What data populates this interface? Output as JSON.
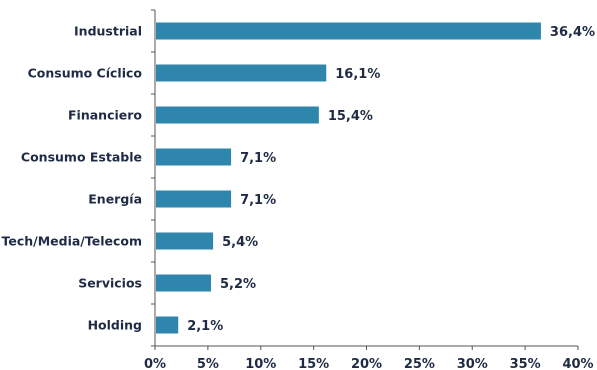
{
  "chart_data": {
    "type": "bar",
    "orientation": "horizontal",
    "categories": [
      "Industrial",
      "Consumo Cíclico",
      "Financiero",
      "Consumo Estable",
      "Energía",
      "Tech/Media/Telecom",
      "Servicios",
      "Holding"
    ],
    "values": [
      36.4,
      16.1,
      15.4,
      7.1,
      7.1,
      5.4,
      5.2,
      2.1
    ],
    "value_labels": [
      "36,4%",
      "16,1%",
      "15,4%",
      "7,1%",
      "7,1%",
      "5,4%",
      "5,2%",
      "2,1%"
    ],
    "xlim": [
      0,
      40
    ],
    "x_ticks": [
      "0%",
      "5%",
      "10%",
      "15%",
      "20%",
      "25%",
      "30%",
      "35%",
      "40%"
    ],
    "grid": false,
    "legend": "none",
    "title": "",
    "xlabel": "",
    "ylabel": "",
    "bar_color": "#2f86ad"
  }
}
